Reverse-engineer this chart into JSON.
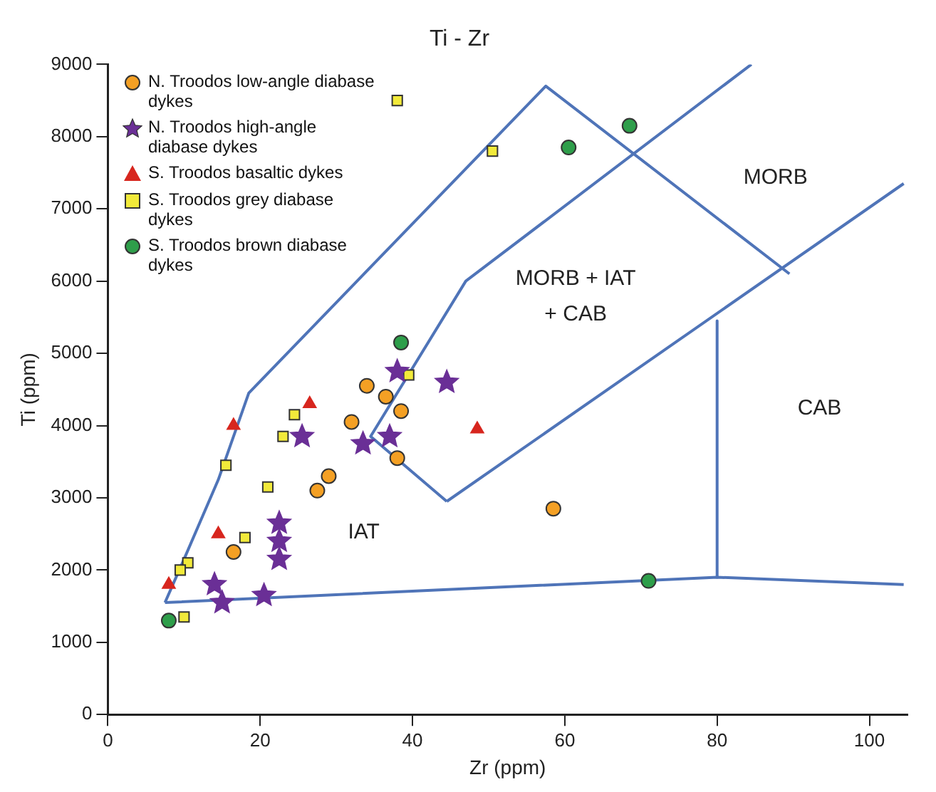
{
  "chart_data": {
    "type": "scatter",
    "title": "Ti - Zr",
    "xlabel": "Zr (ppm)",
    "ylabel": "Ti (ppm)",
    "xlim": [
      0,
      105
    ],
    "xticks": [
      0,
      20,
      40,
      60,
      80,
      100
    ],
    "ylim": [
      0,
      9000
    ],
    "yticks": [
      0,
      1000,
      2000,
      3000,
      4000,
      5000,
      6000,
      7000,
      8000,
      9000
    ],
    "grid": false,
    "legend": "top left",
    "series": [
      {
        "name": "N. Troodos low-angle diabase dykes",
        "color": "#f4a024",
        "marker": "circle",
        "x": [
          34,
          36.5,
          38.5,
          32,
          38,
          29,
          27.5,
          16.5,
          58.5
        ],
        "values": [
          4550,
          4400,
          4200,
          4050,
          3550,
          3300,
          3100,
          2250,
          2850
        ]
      },
      {
        "name": "N. Troodos high-angle diabase dykes",
        "color": "#6a2f96",
        "marker": "star",
        "x": [
          38,
          44.5,
          25.5,
          33.5,
          37,
          22.5,
          22.5,
          22.5,
          14,
          15,
          20.5
        ],
        "values": [
          4750,
          4600,
          3850,
          3750,
          3850,
          2650,
          2400,
          2150,
          1800,
          1550,
          1650
        ]
      },
      {
        "name": "S. Troodos basaltic dykes",
        "color": "#d7261e",
        "marker": "triangle",
        "x": [
          26.5,
          16.5,
          14.5,
          8,
          48.5
        ],
        "values": [
          4300,
          4000,
          2500,
          1800,
          3950
        ]
      },
      {
        "name": "S. Troodos grey diabase dykes",
        "color": "#f2ea3a",
        "marker": "square",
        "x": [
          24.5,
          23,
          15.5,
          21,
          18,
          10.5,
          9.5,
          10,
          39.5,
          38,
          50.5
        ],
        "values": [
          4150,
          3850,
          3450,
          3150,
          2450,
          2100,
          2000,
          1350,
          4700,
          8500,
          7800
        ]
      },
      {
        "name": "S. Troodos brown diabase dykes",
        "color": "#2e9e4a",
        "marker": "circle",
        "x": [
          8,
          38.5,
          60.5,
          68.5,
          71
        ],
        "values": [
          1300,
          5150,
          7850,
          8150,
          1850
        ]
      },
      {
        "type": "line",
        "color": "#4f74b8",
        "marker": "none",
        "x": [
          7.5,
          10,
          14.5,
          18.5,
          57.5,
          89.5
        ],
        "values": [
          1550,
          2150,
          3250,
          4450,
          8700,
          6100
        ]
      },
      {
        "type": "line",
        "color": "#4f74b8",
        "marker": "none",
        "x": [
          44.5,
          34.5,
          47,
          84.5
        ],
        "values": [
          2950,
          3850,
          6000,
          9000
        ]
      },
      {
        "type": "line",
        "color": "#4f74b8",
        "marker": "none",
        "x": [
          44.5,
          104.5
        ],
        "values": [
          2950,
          7350
        ]
      },
      {
        "type": "line",
        "color": "#4f74b8",
        "marker": "none",
        "x": [
          80,
          80
        ],
        "values": [
          5450,
          1900
        ]
      },
      {
        "type": "line",
        "color": "#4f74b8",
        "marker": "none",
        "x": [
          7.5,
          80,
          104.5
        ],
        "values": [
          1550,
          1900,
          1800
        ]
      }
    ],
    "annotations": [
      "MORB",
      "MORB + IAT",
      "+ CAB",
      "CAB",
      "IAT"
    ]
  }
}
